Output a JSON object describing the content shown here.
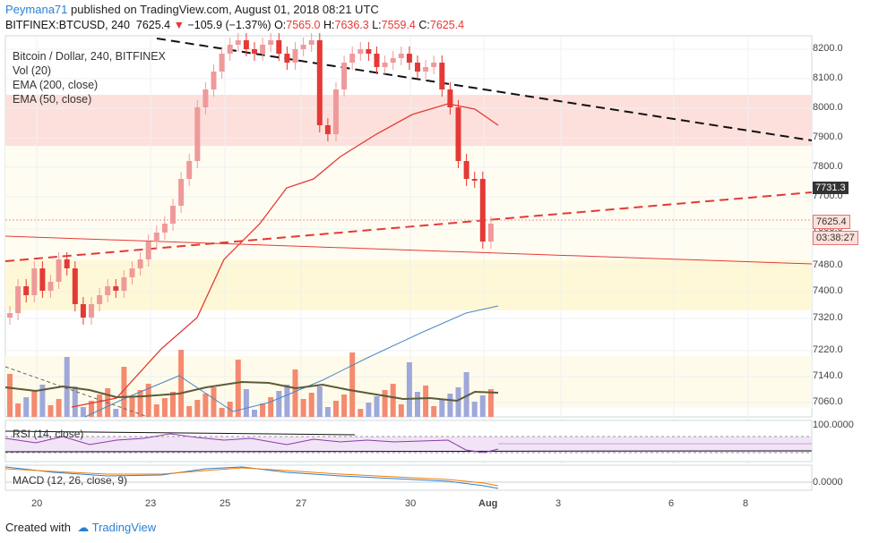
{
  "header": {
    "user": "Peymana71",
    "published_text": "published on TradingView.com, August 01, 2018 08:21 UTC",
    "symbol": "BITFINEX:BTCUSD, 240",
    "last_price": "7625.4",
    "change": "−105.9 (−1.37%)",
    "o_label": "O:",
    "o_value": "7565.0",
    "h_label": "H:",
    "h_value": "7636.3",
    "l_label": "L:",
    "l_value": "7559.4",
    "c_label": "C:",
    "c_value": "7625.4"
  },
  "legend": {
    "title": "Bitcoin / Dollar, 240, BITFINEX",
    "vol": "Vol (20)",
    "ema200": "EMA (200, close)",
    "ema50": "EMA (50, close)"
  },
  "price_axis": [
    "8200.0",
    "8100.0",
    "8000.0",
    "7900.0",
    "7800.0",
    "7700.0",
    "7600.0",
    "7480.0",
    "7400.0",
    "7320.0",
    "7220.0",
    "7140.0",
    "7060.0"
  ],
  "tags": {
    "trend": "7731.3",
    "last": "7625.4",
    "countdown": "03:38:27"
  },
  "rsi": {
    "label": "RSI (14, close)",
    "axis": "100.0000"
  },
  "macd": {
    "label": "MACD (12, 26, close, 9)",
    "axis": "0.0000"
  },
  "time_axis": [
    "20",
    "23",
    "25",
    "27",
    "30",
    "Aug",
    "3",
    "6",
    "8"
  ],
  "footer": {
    "created": "Created with",
    "brand": "TradingView"
  },
  "colors": {
    "up": "#ef9a9a",
    "down": "#e53935",
    "ema50": "#e53935",
    "ema200": "#4a86c5",
    "vol_up": "#f48a6f",
    "vol_down": "#9fa8da",
    "brand": "#2a7fd4"
  },
  "chart_data": {
    "type": "candlestick",
    "x": [
      "20",
      "23",
      "25",
      "27",
      "30",
      "Aug"
    ],
    "ylim": [
      7040,
      8230
    ]
  }
}
